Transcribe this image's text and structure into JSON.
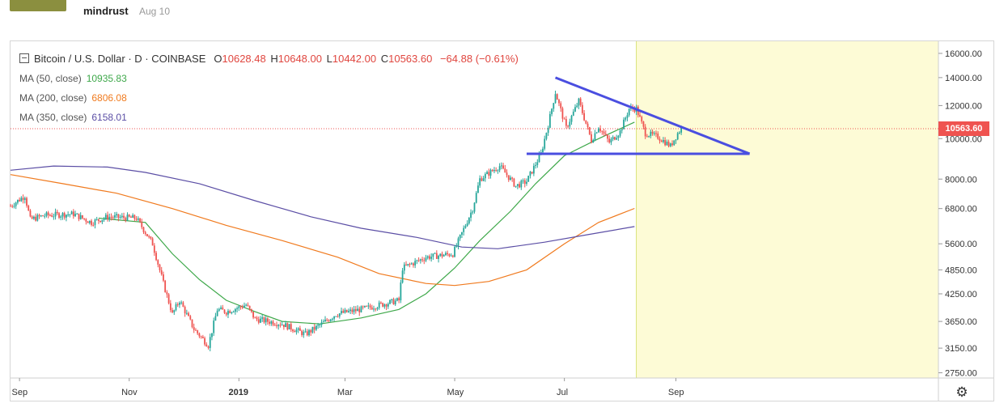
{
  "header": {
    "author": "mindrust",
    "date": "Aug 10"
  },
  "legend": {
    "symbol": "Bitcoin / U.S. Dollar · D · COINBASE",
    "open_label": "O",
    "open": "10628.48",
    "high_label": "H",
    "high": "10648.00",
    "low_label": "L",
    "low": "10442.00",
    "close_label": "C",
    "close": "10563.60",
    "change": "−64.88 (−0.61%)",
    "ma": [
      {
        "label": "MA (50, close)",
        "value": "10935.83",
        "color": "#3ea84a"
      },
      {
        "label": "MA (200, close)",
        "value": "6806.08",
        "color": "#f07a1e"
      },
      {
        "label": "MA (350, close)",
        "value": "6158.01",
        "color": "#5b4ea5"
      }
    ]
  },
  "price_badge": "10563.60",
  "colors": {
    "up": "#26a69a",
    "down": "#ef5350",
    "trendline": "#4a4ee0",
    "highlight": "#fdfbd6"
  },
  "chart_data": {
    "type": "line",
    "title": "Bitcoin / U.S. Dollar · D · COINBASE",
    "scale": "log",
    "y_ticks": [
      16000,
      14000,
      12000,
      10000,
      8000,
      6800,
      5600,
      4850,
      4250,
      3650,
      3150,
      2750
    ],
    "y_tick_labels": [
      "16000.00",
      "14000.00",
      "12000.00",
      "10000.00",
      "8000.00",
      "6800.00",
      "5600.00",
      "4850.00",
      "4250.00",
      "3650.00",
      "3150.00",
      "2750.00"
    ],
    "x_tick_labels": [
      "Sep",
      "Nov",
      "2019",
      "Mar",
      "May",
      "Jul",
      "Sep"
    ],
    "x_tick_dates": [
      "2018-09-01",
      "2018-11-01",
      "2019-01-01",
      "2019-03-01",
      "2019-05-01",
      "2019-07-01",
      "2019-09-01"
    ],
    "x_range": [
      "2018-08-27",
      "2020-01-25"
    ],
    "ylim": [
      2720,
      16800
    ],
    "last_price": 10563.6,
    "price_path": [
      [
        "2018-08-27",
        6900
      ],
      [
        "2018-09-04",
        7300
      ],
      [
        "2018-09-07",
        6400
      ],
      [
        "2018-09-15",
        6550
      ],
      [
        "2018-10-01",
        6600
      ],
      [
        "2018-10-11",
        6300
      ],
      [
        "2018-10-20",
        6500
      ],
      [
        "2018-11-05",
        6450
      ],
      [
        "2018-11-14",
        5600
      ],
      [
        "2018-11-20",
        4500
      ],
      [
        "2018-11-25",
        3800
      ],
      [
        "2018-11-29",
        4100
      ],
      [
        "2018-12-07",
        3500
      ],
      [
        "2018-12-15",
        3200
      ],
      [
        "2018-12-20",
        3900
      ],
      [
        "2018-12-25",
        3850
      ],
      [
        "2019-01-05",
        4000
      ],
      [
        "2019-01-10",
        3700
      ],
      [
        "2019-01-25",
        3600
      ],
      [
        "2019-02-07",
        3400
      ],
      [
        "2019-02-16",
        3600
      ],
      [
        "2019-02-24",
        3800
      ],
      [
        "2019-03-10",
        3900
      ],
      [
        "2019-03-31",
        4100
      ],
      [
        "2019-04-02",
        4900
      ],
      [
        "2019-04-15",
        5200
      ],
      [
        "2019-04-30",
        5300
      ],
      [
        "2019-05-11",
        6800
      ],
      [
        "2019-05-15",
        8000
      ],
      [
        "2019-05-26",
        8600
      ],
      [
        "2019-06-04",
        7700
      ],
      [
        "2019-06-10",
        7900
      ],
      [
        "2019-06-18",
        9200
      ],
      [
        "2019-06-22",
        10800
      ],
      [
        "2019-06-26",
        12900
      ],
      [
        "2019-07-02",
        10600
      ],
      [
        "2019-07-09",
        12300
      ],
      [
        "2019-07-16",
        9900
      ],
      [
        "2019-07-20",
        10700
      ],
      [
        "2019-07-26",
        9800
      ],
      [
        "2019-08-01",
        10400
      ],
      [
        "2019-08-06",
        11800
      ],
      [
        "2019-08-10",
        11800
      ],
      [
        "2019-08-15",
        10300
      ],
      [
        "2019-08-22",
        10100
      ],
      [
        "2019-08-29",
        9600
      ],
      [
        "2019-09-02",
        10300
      ],
      [
        "2019-09-04",
        10563.6
      ]
    ],
    "series": [
      {
        "name": "MA (50, close)",
        "color": "#3ea84a",
        "points": [
          [
            "2018-10-15",
            6450
          ],
          [
            "2018-11-10",
            6300
          ],
          [
            "2018-11-25",
            5300
          ],
          [
            "2018-12-10",
            4600
          ],
          [
            "2018-12-25",
            4100
          ],
          [
            "2019-01-10",
            3850
          ],
          [
            "2019-01-25",
            3650
          ],
          [
            "2019-02-15",
            3600
          ],
          [
            "2019-03-10",
            3720
          ],
          [
            "2019-03-31",
            3900
          ],
          [
            "2019-04-15",
            4250
          ],
          [
            "2019-05-01",
            4900
          ],
          [
            "2019-05-15",
            5700
          ],
          [
            "2019-06-01",
            6700
          ],
          [
            "2019-06-15",
            7800
          ],
          [
            "2019-07-01",
            9100
          ],
          [
            "2019-07-20",
            10000
          ],
          [
            "2019-08-09",
            10950
          ]
        ]
      },
      {
        "name": "MA (200, close)",
        "color": "#f07a1e",
        "points": [
          [
            "2018-08-27",
            8200
          ],
          [
            "2018-09-25",
            7800
          ],
          [
            "2018-10-25",
            7400
          ],
          [
            "2018-11-25",
            6800
          ],
          [
            "2018-12-25",
            6200
          ],
          [
            "2019-01-25",
            5700
          ],
          [
            "2019-02-25",
            5200
          ],
          [
            "2019-03-20",
            4750
          ],
          [
            "2019-04-15",
            4500
          ],
          [
            "2019-05-01",
            4450
          ],
          [
            "2019-05-20",
            4550
          ],
          [
            "2019-06-10",
            4850
          ],
          [
            "2019-07-01",
            5600
          ],
          [
            "2019-07-20",
            6300
          ],
          [
            "2019-08-09",
            6806.08
          ]
        ]
      },
      {
        "name": "MA (350, close)",
        "color": "#5b4ea5",
        "points": [
          [
            "2018-08-27",
            8400
          ],
          [
            "2018-09-20",
            8600
          ],
          [
            "2018-10-20",
            8550
          ],
          [
            "2018-11-10",
            8300
          ],
          [
            "2018-12-10",
            7800
          ],
          [
            "2019-01-10",
            7100
          ],
          [
            "2019-02-10",
            6500
          ],
          [
            "2019-03-10",
            6100
          ],
          [
            "2019-04-10",
            5800
          ],
          [
            "2019-05-05",
            5500
          ],
          [
            "2019-05-25",
            5450
          ],
          [
            "2019-06-20",
            5650
          ],
          [
            "2019-07-15",
            5900
          ],
          [
            "2019-08-09",
            6158.01
          ]
        ]
      }
    ],
    "annotations": {
      "triangle_upper": [
        [
          "2019-06-26",
          14000
        ],
        [
          "2019-10-12",
          9200
        ]
      ],
      "triangle_lower": [
        [
          "2019-06-10",
          9200
        ],
        [
          "2019-10-12",
          9200
        ]
      ],
      "highlight_from": "2019-08-10"
    },
    "grid": true,
    "legend_position": "top-left"
  }
}
